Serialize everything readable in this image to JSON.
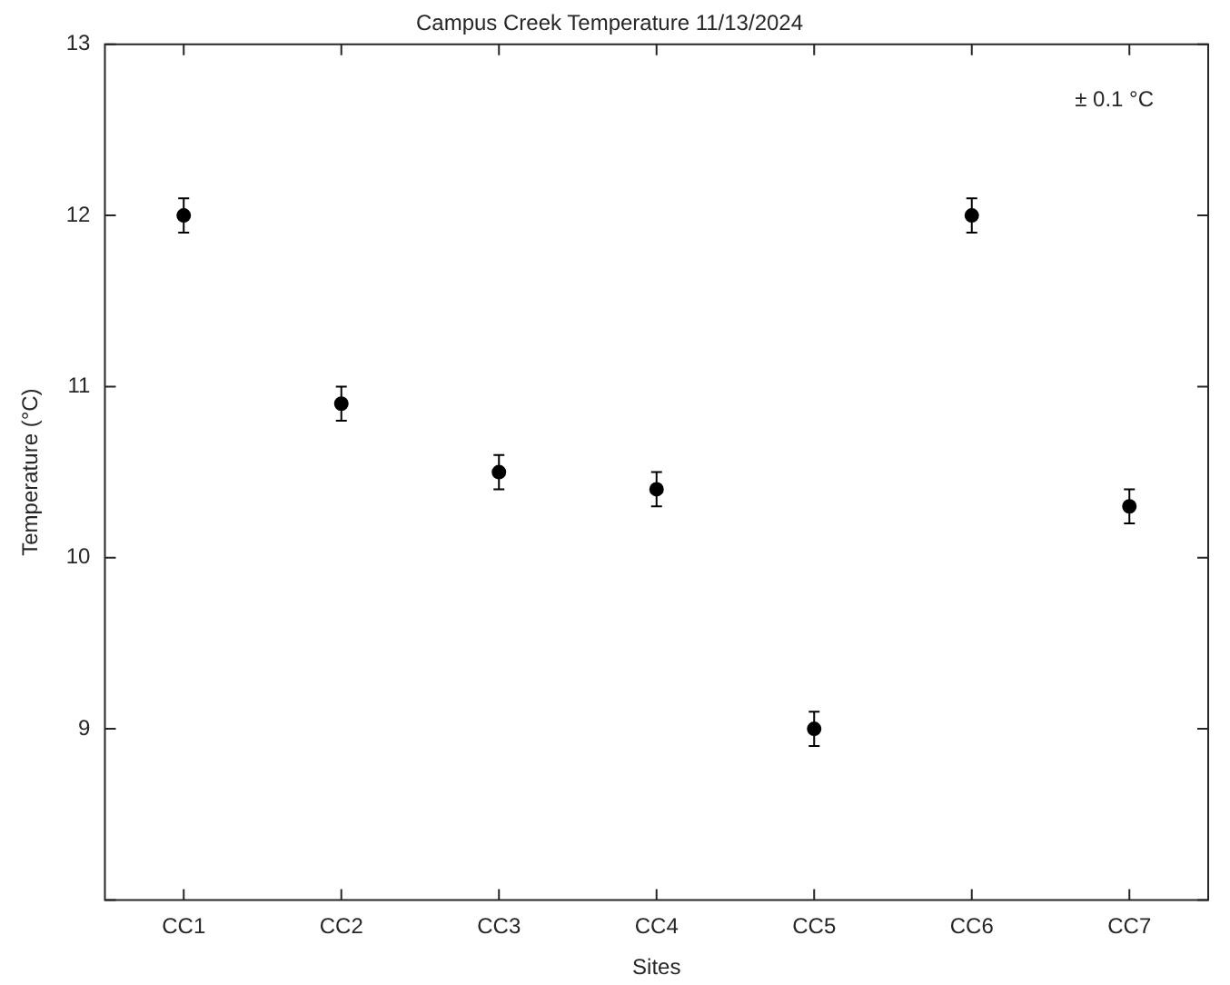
{
  "chart_data": {
    "type": "scatter",
    "title": "Campus Creek Temperature 11/13/2024",
    "xlabel": "Sites",
    "ylabel": "Temperature (°C)",
    "categories": [
      "CC1",
      "CC2",
      "CC3",
      "CC4",
      "CC5",
      "CC6",
      "CC7"
    ],
    "values": [
      12,
      10.9,
      10.5,
      10.4,
      9.0,
      12.0,
      10.3
    ],
    "errors": [
      0.1,
      0.1,
      0.1,
      0.1,
      0.1,
      0.1,
      0.1
    ],
    "color": "#000000",
    "marker": "circle",
    "grid": false,
    "legend": false,
    "ylim": [
      8,
      13
    ],
    "yticks": [
      {
        "value": 8,
        "label": null
      },
      9,
      10,
      11,
      12,
      13
    ],
    "annotations": [
      "± 0.1 °C"
    ]
  }
}
